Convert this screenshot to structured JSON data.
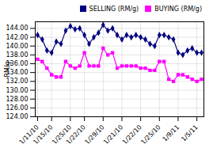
{
  "chart_data": {
    "type": "line",
    "categories": [
      "1/11/10",
      null,
      null,
      "1/15/10",
      null,
      null,
      null,
      "1/25/10",
      null,
      null,
      "1/22/10",
      null,
      null,
      null,
      "1/29/10",
      null,
      null,
      null,
      "1/21/10",
      null,
      null,
      null,
      "1/22/10",
      null,
      null,
      null,
      "1/25/10",
      null,
      null,
      null,
      "1/9/11",
      null,
      null,
      null,
      "1/5/11",
      null
    ],
    "series": [
      {
        "name": "SELLING (RM/g)",
        "color": "#000080",
        "marker": "diamond",
        "values": [
          142.5,
          141.5,
          139.0,
          138.5,
          141.0,
          140.5,
          143.5,
          144.5,
          143.8,
          144.0,
          142.5,
          140.5,
          142.0,
          143.0,
          144.8,
          143.5,
          144.0,
          142.5,
          141.5,
          142.5,
          142.0,
          142.5,
          142.0,
          141.5,
          140.5,
          140.0,
          142.5,
          142.5,
          142.0,
          141.5,
          138.5,
          138.0,
          139.0,
          139.5,
          138.5,
          138.5
        ]
      },
      {
        "name": "BUYING (RM/g)",
        "color": "#ff00ff",
        "marker": "square",
        "values": [
          137.0,
          136.5,
          135.0,
          133.5,
          133.0,
          133.0,
          136.5,
          135.5,
          135.0,
          135.5,
          138.5,
          135.5,
          135.5,
          135.5,
          139.5,
          138.0,
          138.5,
          135.0,
          135.5,
          135.5,
          135.5,
          135.5,
          135.0,
          135.0,
          134.5,
          134.5,
          136.5,
          136.5,
          132.5,
          132.0,
          133.5,
          133.5,
          133.0,
          132.5,
          132.0,
          132.5
        ]
      }
    ],
    "ylabel": "RM/g",
    "ylim": [
      124.0,
      145.5
    ],
    "yticks": [
      {
        "value": 124.0,
        "label": "124.00"
      },
      {
        "value": 126.0,
        "label": "126.00"
      },
      {
        "value": 128.0,
        "label": "128.00"
      },
      {
        "value": 130.0,
        "label": "130.00"
      },
      {
        "value": 132.0,
        "label": "132.00"
      },
      {
        "value": 134.0,
        "label": "134.00"
      },
      {
        "value": 136.0,
        "label": "136.00"
      },
      {
        "value": 138.0,
        "label": "138.00"
      },
      {
        "value": 140.0,
        "label": "140.00"
      },
      {
        "value": 142.0,
        "label": "142.00"
      },
      {
        "value": 144.0,
        "label": "144.00"
      }
    ],
    "grid": true,
    "legend": "upper right"
  }
}
